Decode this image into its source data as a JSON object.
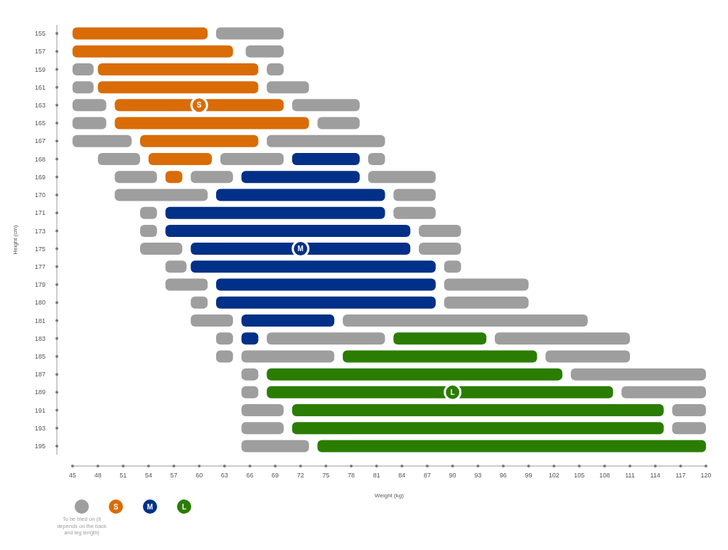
{
  "chart_data": {
    "type": "bar",
    "orientation": "horizontal",
    "xlabel": "Weight (kg)",
    "ylabel": "Height (cm)",
    "legend": "bottom left",
    "categories": [
      "155",
      "157",
      "159",
      "161",
      "163",
      "165",
      "167",
      "168",
      "169",
      "170",
      "171",
      "173",
      "175",
      "177",
      "179",
      "180",
      "181",
      "183",
      "185",
      "187",
      "189",
      "191",
      "193",
      "195"
    ],
    "xlim": [
      45,
      120
    ],
    "xticks": [
      45,
      48,
      51,
      54,
      57,
      60,
      63,
      66,
      69,
      72,
      75,
      78,
      81,
      84,
      87,
      90,
      93,
      96,
      99,
      102,
      105,
      108,
      111,
      114,
      117,
      120
    ],
    "series": [
      {
        "name": "To be tried on (It depends on the back and leg length)",
        "color": "#9e9e9e",
        "base": [
          62,
          65.5,
          45,
          45,
          45,
          45,
          45,
          48,
          50,
          50,
          53,
          53,
          53,
          56,
          56,
          59,
          59,
          62,
          62,
          65,
          65,
          65,
          65,
          65
        ],
        "values": [
          8,
          4.5,
          2.5,
          2.5,
          4,
          4,
          7,
          5,
          5,
          11,
          2,
          2,
          5,
          2.5,
          5,
          2,
          5,
          2,
          2,
          2,
          2,
          5,
          5,
          8
        ]
      },
      {
        "color": "#9e9e9e",
        "base": [
          null,
          null,
          68,
          68,
          71,
          74,
          68,
          62.5,
          59,
          83,
          83,
          86,
          86,
          89,
          89,
          89,
          77,
          68,
          65,
          104,
          110,
          116,
          116,
          null
        ],
        "values": [
          null,
          null,
          2,
          5,
          8,
          5,
          14,
          7.5,
          5,
          5,
          5,
          5,
          5,
          2,
          10,
          10,
          29,
          14,
          11,
          16,
          10,
          4,
          4,
          null
        ]
      },
      {
        "color": "#9e9e9e",
        "base": [
          null,
          null,
          null,
          null,
          null,
          null,
          null,
          80,
          80,
          null,
          null,
          null,
          null,
          null,
          null,
          null,
          null,
          95,
          101,
          null,
          null,
          null,
          null,
          null
        ],
        "values": [
          null,
          null,
          null,
          null,
          null,
          null,
          null,
          2,
          8,
          null,
          null,
          null,
          null,
          null,
          null,
          null,
          null,
          16,
          10,
          null,
          null,
          null,
          null,
          null
        ]
      },
      {
        "name": "S",
        "color": "#d96c06",
        "base": [
          45,
          45,
          48,
          48,
          50,
          50,
          53,
          54,
          56,
          null,
          null,
          null,
          null,
          null,
          null,
          null,
          null,
          null,
          null,
          null,
          null,
          null,
          null,
          null
        ],
        "values": [
          16,
          19,
          19,
          19,
          20,
          23,
          14,
          7.5,
          2,
          null,
          null,
          null,
          null,
          null,
          null,
          null,
          null,
          null,
          null,
          null,
          null,
          null,
          null,
          null
        ]
      },
      {
        "name": "M",
        "color": "#003087",
        "base": [
          null,
          null,
          null,
          null,
          null,
          null,
          null,
          71,
          65,
          62,
          56,
          56,
          59,
          59,
          62,
          62,
          65,
          65,
          null,
          null,
          null,
          null,
          null,
          null
        ],
        "values": [
          null,
          null,
          null,
          null,
          null,
          null,
          null,
          8,
          14,
          20,
          26,
          29,
          26,
          29,
          26,
          26,
          11,
          2,
          null,
          null,
          null,
          null,
          null,
          null
        ]
      },
      {
        "name": "L",
        "color": "#2a7d00",
        "base": [
          null,
          null,
          null,
          null,
          null,
          null,
          null,
          null,
          null,
          null,
          null,
          null,
          null,
          null,
          null,
          null,
          null,
          83,
          77,
          68,
          68,
          71,
          71,
          74
        ],
        "values": [
          null,
          null,
          null,
          null,
          null,
          null,
          null,
          null,
          null,
          null,
          null,
          null,
          null,
          null,
          null,
          null,
          null,
          11,
          23,
          35,
          41,
          44,
          44,
          46
        ]
      }
    ],
    "annotations": [
      {
        "text": "S",
        "x": 60,
        "y": "163"
      },
      {
        "text": "M",
        "x": 72,
        "y": "175"
      },
      {
        "text": "L",
        "x": 90,
        "y": "189"
      }
    ]
  }
}
